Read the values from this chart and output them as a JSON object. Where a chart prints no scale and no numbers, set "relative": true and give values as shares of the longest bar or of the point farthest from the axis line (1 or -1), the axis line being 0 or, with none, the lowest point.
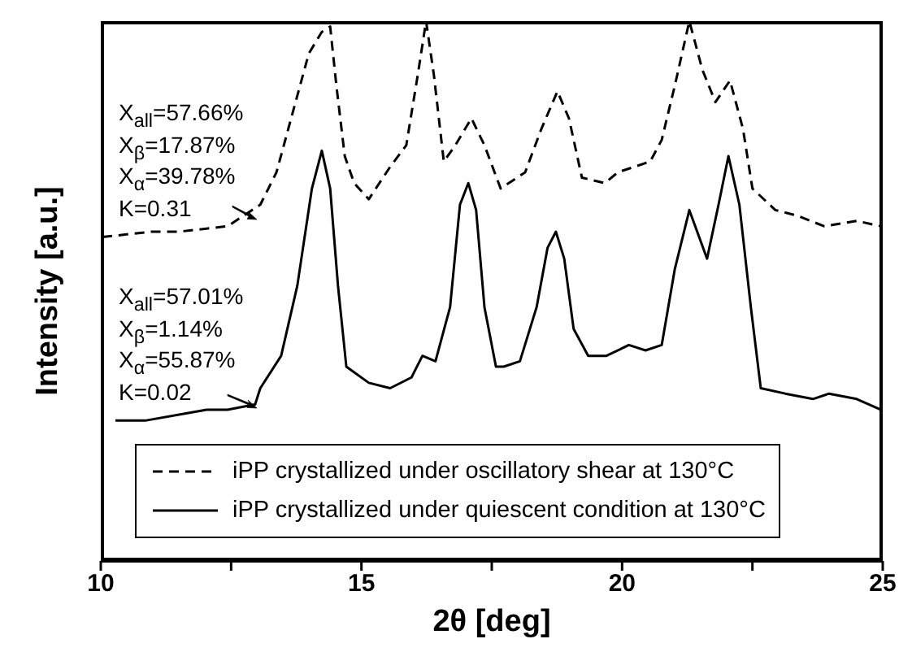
{
  "chart_data": {
    "type": "line",
    "relative": true,
    "xlabel": "2θ  [deg]",
    "ylabel": "Intensity  [a.u.]",
    "xlim": [
      10,
      25
    ],
    "xticks": [
      10,
      {
        "value": 12.5,
        "label": null
      },
      15,
      {
        "value": 17.5,
        "label": null
      },
      20,
      {
        "value": 22.5,
        "label": null
      },
      25
    ],
    "legend": "bottom",
    "marker": "none",
    "annotations": [
      "X$_{all}$=57.66%",
      "X$_{β}$=17.87%",
      "X$_{α}$=39.78%",
      "K=0.31",
      "X$_{all}$=57.01%",
      "X$_{β}$=1.14%",
      "X$_{α}$=55.87%",
      "K=0.02"
    ],
    "series": [
      {
        "name": "iPP crystallized under oscillatory shear at 130°C",
        "color": "#000000",
        "line_style": "dashed",
        "x": [
          10.03,
          10.97,
          11.5,
          12.43,
          13.06,
          13.37,
          13.68,
          13.99,
          14.24,
          14.4,
          14.52,
          14.68,
          14.86,
          15.14,
          15.55,
          15.86,
          16.08,
          16.24,
          16.39,
          16.58,
          16.8,
          17.11,
          17.36,
          17.67,
          18.14,
          18.45,
          18.76,
          18.98,
          19.23,
          19.67,
          19.92,
          20.54,
          20.76,
          21.01,
          21.29,
          21.54,
          21.79,
          22.07,
          22.32,
          22.5,
          22.94,
          23.35,
          23.88,
          24.5,
          24.97
        ],
        "values": [
          0.6,
          0.61,
          0.61,
          0.62,
          0.66,
          0.72,
          0.83,
          0.94,
          0.98,
          0.99,
          0.88,
          0.75,
          0.7,
          0.67,
          0.73,
          0.77,
          0.9,
          1,
          0.9,
          0.74,
          0.77,
          0.82,
          0.77,
          0.69,
          0.72,
          0.8,
          0.87,
          0.82,
          0.71,
          0.7,
          0.72,
          0.74,
          0.78,
          0.88,
          1,
          0.91,
          0.85,
          0.89,
          0.8,
          0.69,
          0.65,
          0.64,
          0.62,
          0.63,
          0.62
        ]
      },
      {
        "name": "iPP crystallized under quiescent condition at 130°C",
        "color": "#000000",
        "line_style": "solid",
        "x": [
          10.28,
          10.85,
          12.03,
          12.43,
          12.96,
          13.06,
          13.46,
          13.77,
          14.05,
          14.24,
          14.4,
          14.55,
          14.71,
          15.14,
          15.55,
          15.96,
          16.17,
          16.42,
          16.7,
          16.89,
          17.05,
          17.2,
          17.36,
          17.58,
          17.73,
          18.04,
          18.36,
          18.57,
          18.73,
          18.89,
          19.07,
          19.35,
          19.7,
          20.13,
          20.45,
          20.76,
          21.01,
          21.29,
          21.63,
          21.85,
          22.04,
          22.25,
          22.47,
          22.66,
          23.13,
          23.66,
          23.97,
          24.5,
          24.97
        ],
        "values": [
          0.26,
          0.26,
          0.28,
          0.28,
          0.29,
          0.32,
          0.38,
          0.51,
          0.69,
          0.76,
          0.69,
          0.51,
          0.36,
          0.33,
          0.32,
          0.34,
          0.38,
          0.37,
          0.47,
          0.66,
          0.7,
          0.65,
          0.47,
          0.36,
          0.36,
          0.37,
          0.47,
          0.58,
          0.61,
          0.56,
          0.43,
          0.38,
          0.38,
          0.4,
          0.39,
          0.4,
          0.54,
          0.65,
          0.56,
          0.66,
          0.75,
          0.66,
          0.47,
          0.32,
          0.31,
          0.3,
          0.31,
          0.3,
          0.28
        ]
      }
    ]
  }
}
